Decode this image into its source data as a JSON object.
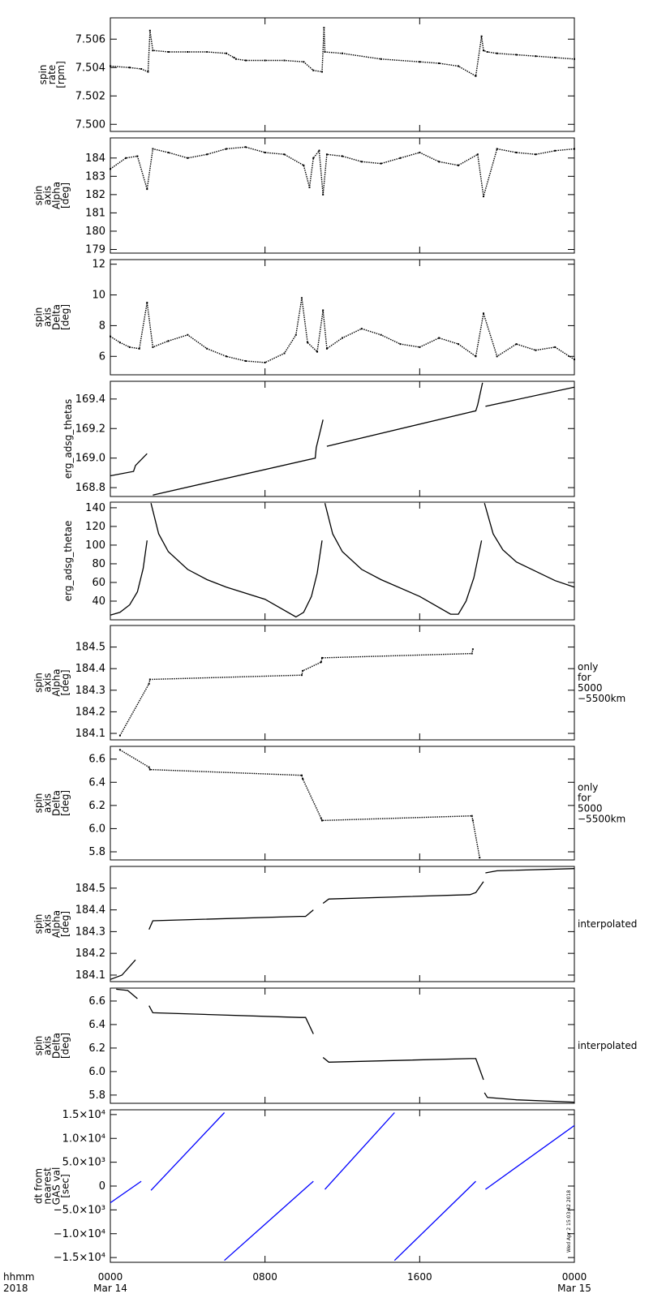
{
  "chart_data": [
    {
      "type": "scatter",
      "ylabel_lines": [
        "spin",
        "rate",
        "[rpm]"
      ],
      "ylim": [
        7.4995,
        7.5075
      ],
      "yticks": [
        7.5,
        7.502,
        7.504,
        7.506
      ],
      "ytick_labels": [
        "7.500",
        "7.502",
        "7.504",
        "7.506"
      ],
      "note_lines": [],
      "series": [
        {
          "x": [
            0,
            1,
            1.6,
            1.95,
            2.05,
            2.2,
            3,
            4,
            5,
            6,
            6.4,
            6.5,
            7,
            8,
            9,
            10,
            10.5,
            10.95,
            11.05,
            11.1,
            12,
            14,
            16,
            17,
            18,
            18.9,
            19.2,
            19.3,
            19.5,
            20,
            21,
            22,
            23,
            24
          ],
          "y": [
            7.5041,
            7.504,
            7.5039,
            7.5037,
            7.5066,
            7.5052,
            7.5051,
            7.5051,
            7.5051,
            7.505,
            7.5047,
            7.5046,
            7.5045,
            7.5045,
            7.5045,
            7.5044,
            7.5038,
            7.5037,
            7.5068,
            7.5051,
            7.505,
            7.5046,
            7.5044,
            7.5043,
            7.5041,
            7.5034,
            7.5062,
            7.5052,
            7.5051,
            7.505,
            7.5049,
            7.5048,
            7.5047,
            7.5046
          ]
        }
      ]
    },
    {
      "type": "scatter",
      "ylabel_lines": [
        "spin",
        "axis",
        "Alpha",
        "[deg]"
      ],
      "ylim": [
        178.8,
        185.1
      ],
      "yticks": [
        179,
        180,
        181,
        182,
        183,
        184
      ],
      "ytick_labels": [
        "179",
        "180",
        "181",
        "182",
        "183",
        "184"
      ],
      "note_lines": [],
      "series": [
        {
          "x": [
            0,
            0.8,
            1.4,
            1.9,
            2.2,
            3,
            4,
            5,
            6,
            7,
            8,
            9,
            10,
            10.3,
            10.5,
            10.8,
            11.0,
            11.2,
            12,
            13,
            14,
            15,
            16,
            17,
            18,
            19,
            19.3,
            20,
            21,
            22,
            23,
            24
          ],
          "y": [
            183.4,
            184.0,
            184.1,
            182.3,
            184.5,
            184.3,
            184.0,
            184.2,
            184.5,
            184.6,
            184.3,
            184.2,
            183.6,
            182.4,
            184.0,
            184.4,
            182.0,
            184.2,
            184.1,
            183.8,
            183.7,
            184.0,
            184.3,
            183.8,
            183.6,
            184.2,
            181.9,
            184.5,
            184.3,
            184.2,
            184.4,
            184.5
          ]
        }
      ]
    },
    {
      "type": "scatter",
      "ylabel_lines": [
        "spin",
        "axis",
        "Delta",
        "[deg]"
      ],
      "ylim": [
        4.8,
        12.3
      ],
      "yticks": [
        6,
        8,
        10,
        12
      ],
      "ytick_labels": [
        "6",
        "8",
        "10",
        "12"
      ],
      "note_lines": [],
      "series": [
        {
          "x": [
            0,
            0.5,
            1.0,
            1.5,
            1.9,
            2.2,
            3,
            4,
            5,
            6,
            7,
            8,
            9,
            9.6,
            9.9,
            10.2,
            10.7,
            11.0,
            11.2,
            12,
            13,
            14,
            15,
            16,
            17,
            18,
            18.9,
            19.3,
            20,
            21,
            22,
            23,
            24
          ],
          "y": [
            7.3,
            6.9,
            6.6,
            6.5,
            9.5,
            6.6,
            7.0,
            7.4,
            6.5,
            6.0,
            5.7,
            5.6,
            6.2,
            7.4,
            9.8,
            6.9,
            6.3,
            9.0,
            6.5,
            7.2,
            7.8,
            7.4,
            6.8,
            6.6,
            7.2,
            6.8,
            6.0,
            8.8,
            6.0,
            6.8,
            6.4,
            6.6,
            5.8
          ]
        }
      ]
    },
    {
      "type": "line",
      "ylabel_lines": [
        "erg_adsg_thetas"
      ],
      "ylim": [
        168.74,
        169.52
      ],
      "yticks": [
        168.8,
        169.0,
        169.2,
        169.4
      ],
      "ytick_labels": [
        "168.8",
        "169.0",
        "169.2",
        "169.4"
      ],
      "note_lines": [],
      "series": [
        {
          "x": [
            0,
            1.2,
            1.3,
            1.9
          ],
          "y": [
            168.88,
            168.91,
            168.95,
            169.03
          ]
        },
        {
          "x": [
            2.2,
            10.6,
            10.65,
            11.0
          ],
          "y": [
            168.75,
            169.0,
            169.07,
            169.26
          ]
        },
        {
          "x": [
            11.2,
            18.9,
            19.0,
            19.25
          ],
          "y": [
            169.08,
            169.32,
            169.36,
            169.51
          ]
        },
        {
          "x": [
            19.4,
            24
          ],
          "y": [
            169.35,
            169.48
          ]
        }
      ]
    },
    {
      "type": "line",
      "ylabel_lines": [
        "erg_adsg_thetae"
      ],
      "ylim": [
        20,
        146
      ],
      "yticks": [
        40,
        60,
        80,
        100,
        120,
        140
      ],
      "ytick_labels": [
        "40",
        "60",
        "80",
        "100",
        "120",
        "140"
      ],
      "note_lines": [],
      "series": [
        {
          "x": [
            0,
            0.5,
            1.0,
            1.4,
            1.7,
            1.9
          ],
          "y": [
            25,
            28,
            36,
            50,
            75,
            105
          ]
        },
        {
          "x": [
            2.1,
            2.5,
            3,
            4,
            5,
            6,
            8,
            9.6,
            10.0,
            10.4,
            10.7,
            10.95
          ],
          "y": [
            145,
            112,
            93,
            74,
            63,
            55,
            42,
            23,
            28,
            45,
            70,
            105
          ]
        },
        {
          "x": [
            11.1,
            11.5,
            12,
            13,
            14,
            16,
            17.6,
            18.0,
            18.4,
            18.8,
            19.2
          ],
          "y": [
            145,
            112,
            93,
            74,
            63,
            45,
            26,
            26,
            40,
            65,
            105
          ]
        },
        {
          "x": [
            19.35,
            19.8,
            20.3,
            21,
            22,
            23,
            24
          ],
          "y": [
            145,
            112,
            95,
            82,
            72,
            62,
            55
          ]
        }
      ]
    },
    {
      "type": "scatter",
      "ylabel_lines": [
        "spin",
        "axis",
        "Alpha",
        "[deg]"
      ],
      "ylim": [
        184.07,
        184.6
      ],
      "yticks": [
        184.1,
        184.2,
        184.3,
        184.4,
        184.5
      ],
      "ytick_labels": [
        "184.1",
        "184.2",
        "184.3",
        "184.4",
        "184.5"
      ],
      "note_lines": [
        "only",
        "for",
        "5000",
        "−5500km"
      ],
      "series": [
        {
          "x": [
            0.5,
            2.0,
            2.05,
            9.9,
            9.95,
            10.9,
            10.95,
            18.7,
            18.75
          ],
          "y": [
            184.09,
            184.33,
            184.35,
            184.37,
            184.39,
            184.43,
            184.45,
            184.47,
            184.49
          ]
        }
      ]
    },
    {
      "type": "scatter",
      "ylabel_lines": [
        "spin",
        "axis",
        "Delta",
        "[deg]"
      ],
      "ylim": [
        5.73,
        6.71
      ],
      "yticks": [
        5.8,
        6.0,
        6.2,
        6.4,
        6.6
      ],
      "ytick_labels": [
        "5.8",
        "6.0",
        "6.2",
        "6.4",
        "6.6"
      ],
      "note_lines": [
        "only",
        "for",
        "5000",
        "−5500km"
      ],
      "series": [
        {
          "x": [
            0.5,
            2.0,
            2.05,
            9.9,
            9.95,
            10.9,
            10.95,
            18.7,
            18.75,
            19.1
          ],
          "y": [
            6.68,
            6.53,
            6.51,
            6.46,
            6.43,
            6.09,
            6.07,
            6.11,
            6.07,
            5.75
          ]
        }
      ]
    },
    {
      "type": "line",
      "ylabel_lines": [
        "spin",
        "axis",
        "Alpha",
        "[deg]"
      ],
      "ylim": [
        184.07,
        184.6
      ],
      "yticks": [
        184.1,
        184.2,
        184.3,
        184.4,
        184.5
      ],
      "ytick_labels": [
        "184.1",
        "184.2",
        "184.3",
        "184.4",
        "184.5"
      ],
      "note_lines": [
        "interpolated"
      ],
      "series": [
        {
          "x": [
            0,
            0.6,
            1.3
          ],
          "y": [
            184.08,
            184.1,
            184.17
          ]
        },
        {
          "x": [
            2.0,
            2.2,
            9.8,
            10.1,
            10.5
          ],
          "y": [
            184.31,
            184.35,
            184.37,
            184.37,
            184.4
          ]
        },
        {
          "x": [
            11.0,
            11.3,
            18.6,
            18.9,
            19.3
          ],
          "y": [
            184.43,
            184.45,
            184.47,
            184.48,
            184.53
          ]
        },
        {
          "x": [
            19.4,
            20,
            24
          ],
          "y": [
            184.57,
            184.58,
            184.59
          ]
        }
      ]
    },
    {
      "type": "line",
      "ylabel_lines": [
        "spin",
        "axis",
        "Delta",
        "[deg]"
      ],
      "ylim": [
        5.73,
        6.71
      ],
      "yticks": [
        5.8,
        6.0,
        6.2,
        6.4,
        6.6
      ],
      "ytick_labels": [
        "5.8",
        "6.0",
        "6.2",
        "6.4",
        "6.6"
      ],
      "note_lines": [
        "interpolated"
      ],
      "series": [
        {
          "x": [
            0.3,
            0.9,
            1.4
          ],
          "y": [
            6.7,
            6.69,
            6.62
          ]
        },
        {
          "x": [
            2.0,
            2.2,
            9.8,
            10.1,
            10.5
          ],
          "y": [
            6.56,
            6.5,
            6.46,
            6.46,
            6.32
          ]
        },
        {
          "x": [
            11.0,
            11.3,
            18.6,
            18.9,
            19.3
          ],
          "y": [
            6.12,
            6.08,
            6.11,
            6.11,
            5.93
          ]
        },
        {
          "x": [
            19.35,
            19.5,
            21,
            24
          ],
          "y": [
            5.82,
            5.78,
            5.76,
            5.74
          ]
        }
      ]
    },
    {
      "type": "line",
      "color": "#0000ff",
      "ylabel_lines": [
        "dt from",
        "nearest",
        "GAS val",
        "[sec]"
      ],
      "ylim": [
        -16000,
        16000
      ],
      "yticks": [
        -15000,
        -10000,
        -5000,
        0,
        5000,
        10000,
        15000
      ],
      "ytick_labels": [
        "−1.5×10⁴",
        "−1.0×10⁴",
        "−5.0×10³",
        "0",
        "5.0×10³",
        "1.0×10⁴",
        "1.5×10⁴"
      ],
      "note_lines": [],
      "side_stamp": "Wed Apr  2 15:03:42 2018",
      "series": [
        {
          "x": [
            0,
            1.6
          ],
          "y": [
            -3500,
            1000
          ]
        },
        {
          "x": [
            2.1,
            5.9
          ],
          "y": [
            -900,
            15400
          ]
        },
        {
          "x": [
            5.9,
            10.5
          ],
          "y": [
            -15600,
            1000
          ]
        },
        {
          "x": [
            11.1,
            14.7
          ],
          "y": [
            -700,
            15400
          ]
        },
        {
          "x": [
            14.7,
            18.9
          ],
          "y": [
            -15600,
            1000
          ]
        },
        {
          "x": [
            19.4,
            24
          ],
          "y": [
            -700,
            12700
          ]
        }
      ]
    }
  ],
  "x_axis": {
    "xlim": [
      0,
      24
    ],
    "ticks": [
      0,
      8,
      16,
      24
    ],
    "tick_labels": [
      "0000",
      "0800",
      "1600",
      "0000"
    ],
    "date_labels": [
      "Mar 14",
      "",
      "",
      "Mar 15"
    ],
    "row_label": "hhmm",
    "year_label": "2018"
  },
  "colors": {
    "data": "#000000",
    "accent": "#0000ff",
    "axes": "#000000"
  }
}
